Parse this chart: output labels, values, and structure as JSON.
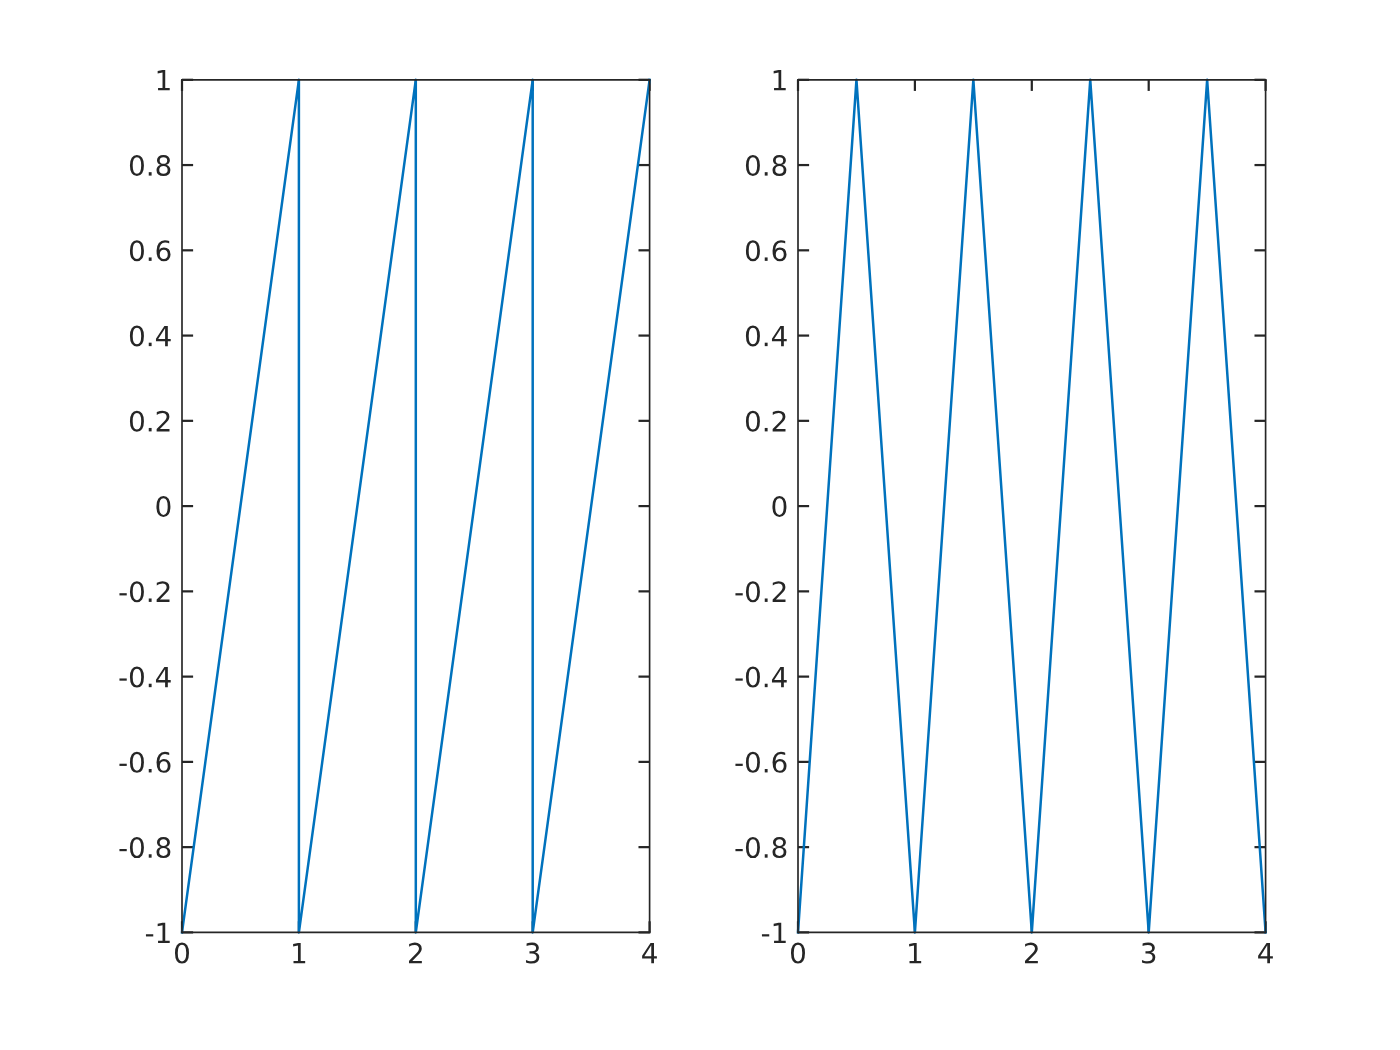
{
  "chart_data": [
    {
      "type": "line",
      "x": [
        0,
        1,
        1,
        2,
        2,
        3,
        3,
        4
      ],
      "series": [
        {
          "color": "#0072bd",
          "values": [
            -1,
            1,
            -1,
            1,
            -1,
            1,
            -1,
            1
          ]
        }
      ],
      "xlim": [
        0,
        4
      ],
      "xticks": [
        0,
        1,
        2,
        3,
        4
      ],
      "ylim": [
        -1,
        1
      ],
      "yticks": [
        -1,
        -0.8,
        -0.6,
        -0.4,
        -0.2,
        0,
        0.2,
        0.4,
        0.6,
        0.8,
        1
      ],
      "grid": false
    },
    {
      "type": "line",
      "x": [
        0,
        0.5,
        1,
        1.5,
        2,
        2.5,
        3,
        3.5,
        4
      ],
      "series": [
        {
          "color": "#0072bd",
          "values": [
            -1,
            1,
            -1,
            1,
            -1,
            1,
            -1,
            1,
            -1
          ]
        }
      ],
      "xlim": [
        0,
        4
      ],
      "xticks": [
        0,
        1,
        2,
        3,
        4
      ],
      "ylim": [
        -1,
        1
      ],
      "yticks": [
        -1,
        -0.8,
        -0.6,
        -0.4,
        -0.2,
        0,
        0.2,
        0.4,
        0.6,
        0.8,
        1
      ],
      "grid": false
    }
  ]
}
